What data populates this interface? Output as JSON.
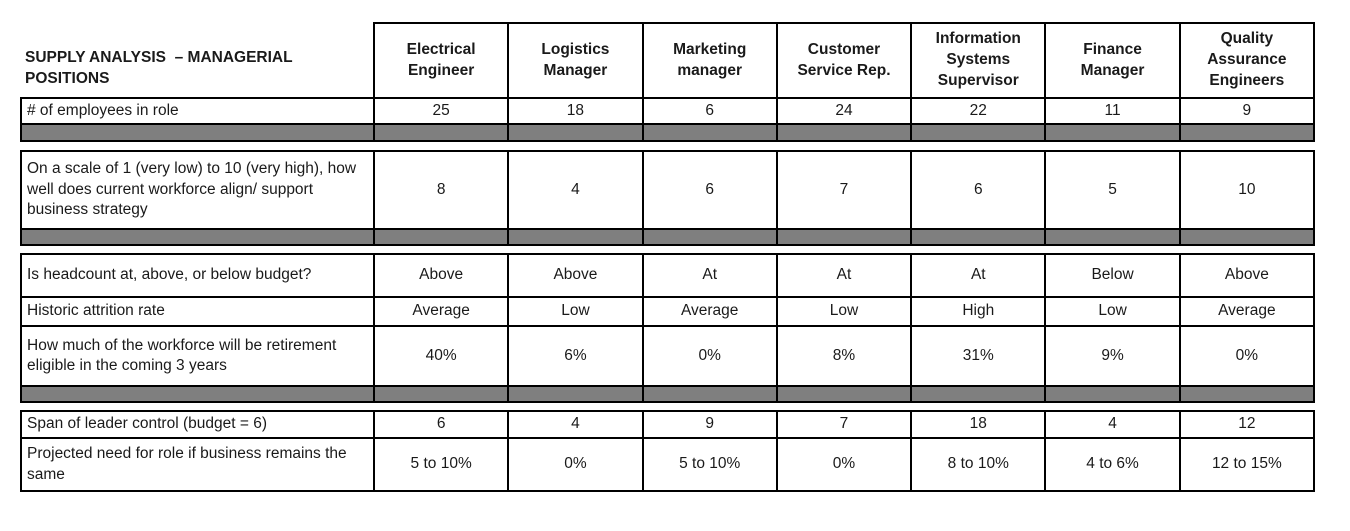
{
  "table": {
    "title": "SUPPLY ANALYSIS  – MANAGERIAL POSITIONS",
    "columns": [
      "Electrical Engineer",
      "Logistics Manager",
      "Marketing manager",
      "Customer Service Rep.",
      "Information Systems Supervisor",
      "Finance Manager",
      "Quality Assurance Engineers"
    ],
    "rows": [
      {
        "label": "# of employees in role",
        "values": [
          "25",
          "18",
          "6",
          "24",
          "22",
          "11",
          "9"
        ]
      },
      {
        "label": "On a scale of 1 (very low) to 10 (very high), how well does current workforce align/ support business strategy",
        "values": [
          "8",
          "4",
          "6",
          "7",
          "6",
          "5",
          "10"
        ]
      },
      {
        "label": "Is headcount at, above, or below budget?",
        "values": [
          "Above",
          "Above",
          "At",
          "At",
          "At",
          "Below",
          "Above"
        ]
      },
      {
        "label": "Historic attrition rate",
        "values": [
          "Average",
          "Low",
          "Average",
          "Low",
          "High",
          "Low",
          "Average"
        ]
      },
      {
        "label": "How much of the workforce will be retirement eligible in the coming 3 years",
        "values": [
          "40%",
          "6%",
          "0%",
          "8%",
          "31%",
          "9%",
          "0%"
        ]
      },
      {
        "label": "Span of leader control (budget = 6)",
        "values": [
          "6",
          "4",
          "9",
          "7",
          "18",
          "4",
          "12"
        ]
      },
      {
        "label": "Projected need for role if business remains the same",
        "values": [
          "5 to 10%",
          "0%",
          "5 to 10%",
          "0%",
          "8 to 10%",
          "4 to 6%",
          "12 to 15%"
        ]
      }
    ],
    "colors": {
      "separator_gray": "#7f7f7f",
      "border": "#000000",
      "text": "#1a1a1a",
      "background": "#ffffff"
    }
  }
}
